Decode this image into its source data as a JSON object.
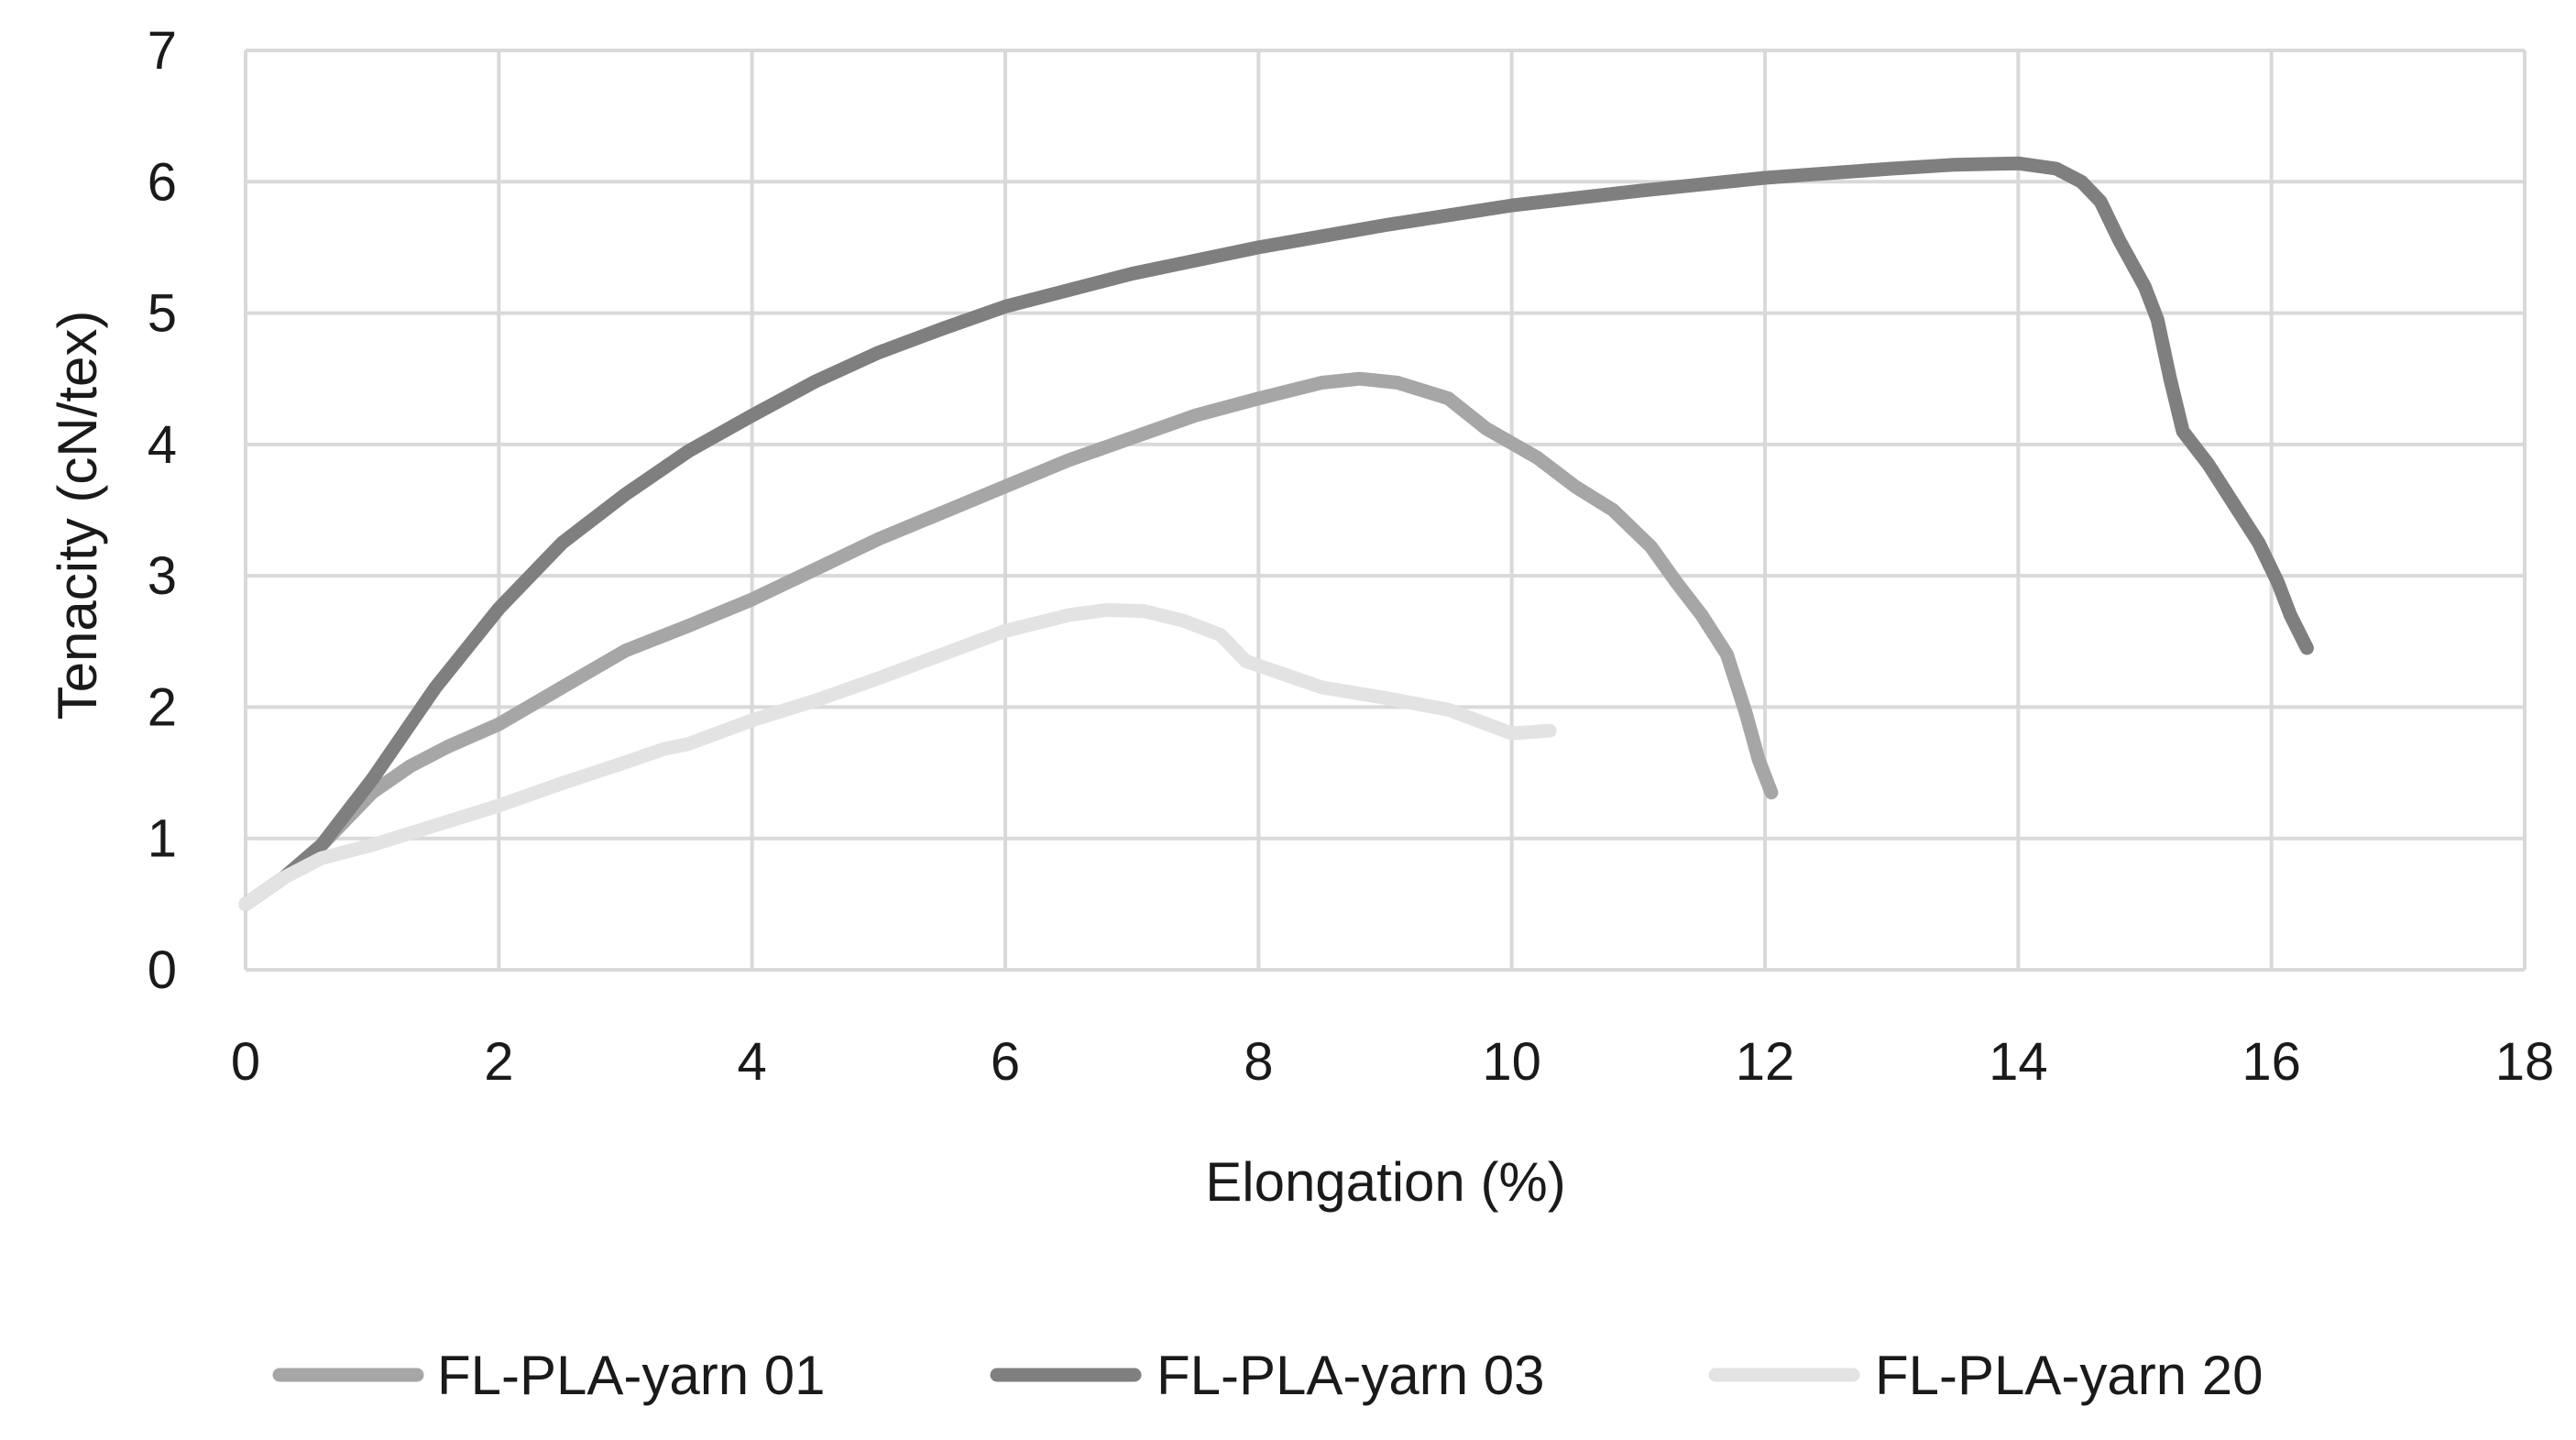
{
  "chart_data": {
    "type": "line",
    "title": "",
    "xlabel": "Elongation (%)",
    "ylabel": "Tenacity (cN/tex)",
    "xlim": [
      0,
      18
    ],
    "ylim": [
      0,
      7
    ],
    "xticks": [
      0,
      2,
      4,
      6,
      8,
      10,
      12,
      14,
      16,
      18
    ],
    "yticks": [
      0,
      1,
      2,
      3,
      4,
      5,
      6,
      7
    ],
    "grid": true,
    "legend_position": "bottom",
    "series": [
      {
        "name": "FL-PLA-yarn 01",
        "color": "#a6a6a6",
        "points": [
          [
            0,
            0.5
          ],
          [
            0.3,
            0.7
          ],
          [
            0.6,
            0.95
          ],
          [
            1.0,
            1.35
          ],
          [
            1.3,
            1.55
          ],
          [
            1.6,
            1.7
          ],
          [
            2.0,
            1.87
          ],
          [
            2.5,
            2.15
          ],
          [
            3.0,
            2.43
          ],
          [
            3.5,
            2.62
          ],
          [
            4.0,
            2.82
          ],
          [
            4.5,
            3.05
          ],
          [
            5.0,
            3.28
          ],
          [
            5.5,
            3.48
          ],
          [
            6.0,
            3.68
          ],
          [
            6.5,
            3.88
          ],
          [
            7.0,
            4.05
          ],
          [
            7.5,
            4.22
          ],
          [
            8.0,
            4.35
          ],
          [
            8.5,
            4.47
          ],
          [
            8.8,
            4.5
          ],
          [
            9.1,
            4.47
          ],
          [
            9.5,
            4.35
          ],
          [
            9.8,
            4.12
          ],
          [
            10.2,
            3.9
          ],
          [
            10.5,
            3.68
          ],
          [
            10.8,
            3.5
          ],
          [
            11.1,
            3.22
          ],
          [
            11.3,
            2.95
          ],
          [
            11.5,
            2.7
          ],
          [
            11.7,
            2.4
          ],
          [
            11.85,
            1.95
          ],
          [
            11.95,
            1.6
          ],
          [
            12.05,
            1.35
          ]
        ]
      },
      {
        "name": "FL-PLA-yarn 03",
        "color": "#7f7f7f",
        "points": [
          [
            0,
            0.5
          ],
          [
            0.3,
            0.7
          ],
          [
            0.6,
            0.95
          ],
          [
            1.0,
            1.45
          ],
          [
            1.5,
            2.15
          ],
          [
            2.0,
            2.75
          ],
          [
            2.5,
            3.25
          ],
          [
            3.0,
            3.62
          ],
          [
            3.5,
            3.95
          ],
          [
            4.0,
            4.22
          ],
          [
            4.5,
            4.48
          ],
          [
            5.0,
            4.7
          ],
          [
            5.5,
            4.88
          ],
          [
            6.0,
            5.05
          ],
          [
            7.0,
            5.3
          ],
          [
            8.0,
            5.5
          ],
          [
            9.0,
            5.67
          ],
          [
            10.0,
            5.82
          ],
          [
            11.0,
            5.93
          ],
          [
            12.0,
            6.03
          ],
          [
            13.0,
            6.1
          ],
          [
            13.5,
            6.13
          ],
          [
            14.0,
            6.14
          ],
          [
            14.3,
            6.1
          ],
          [
            14.5,
            6.0
          ],
          [
            14.65,
            5.85
          ],
          [
            14.8,
            5.55
          ],
          [
            15.0,
            5.2
          ],
          [
            15.1,
            4.95
          ],
          [
            15.2,
            4.5
          ],
          [
            15.3,
            4.1
          ],
          [
            15.5,
            3.85
          ],
          [
            15.7,
            3.55
          ],
          [
            15.9,
            3.25
          ],
          [
            16.05,
            2.95
          ],
          [
            16.15,
            2.7
          ],
          [
            16.28,
            2.45
          ]
        ]
      },
      {
        "name": "FL-PLA-yarn 20",
        "color": "#e3e3e3",
        "points": [
          [
            0,
            0.5
          ],
          [
            0.3,
            0.7
          ],
          [
            0.6,
            0.85
          ],
          [
            1.0,
            0.95
          ],
          [
            1.5,
            1.1
          ],
          [
            2.0,
            1.25
          ],
          [
            2.5,
            1.42
          ],
          [
            3.0,
            1.58
          ],
          [
            3.3,
            1.68
          ],
          [
            3.5,
            1.72
          ],
          [
            4.0,
            1.9
          ],
          [
            4.5,
            2.05
          ],
          [
            5.0,
            2.22
          ],
          [
            5.5,
            2.4
          ],
          [
            6.0,
            2.58
          ],
          [
            6.5,
            2.7
          ],
          [
            6.8,
            2.74
          ],
          [
            7.1,
            2.73
          ],
          [
            7.4,
            2.66
          ],
          [
            7.7,
            2.55
          ],
          [
            7.9,
            2.35
          ],
          [
            8.2,
            2.25
          ],
          [
            8.5,
            2.15
          ],
          [
            9.0,
            2.07
          ],
          [
            9.5,
            1.98
          ],
          [
            10.0,
            1.8
          ],
          [
            10.3,
            1.82
          ]
        ]
      }
    ]
  }
}
